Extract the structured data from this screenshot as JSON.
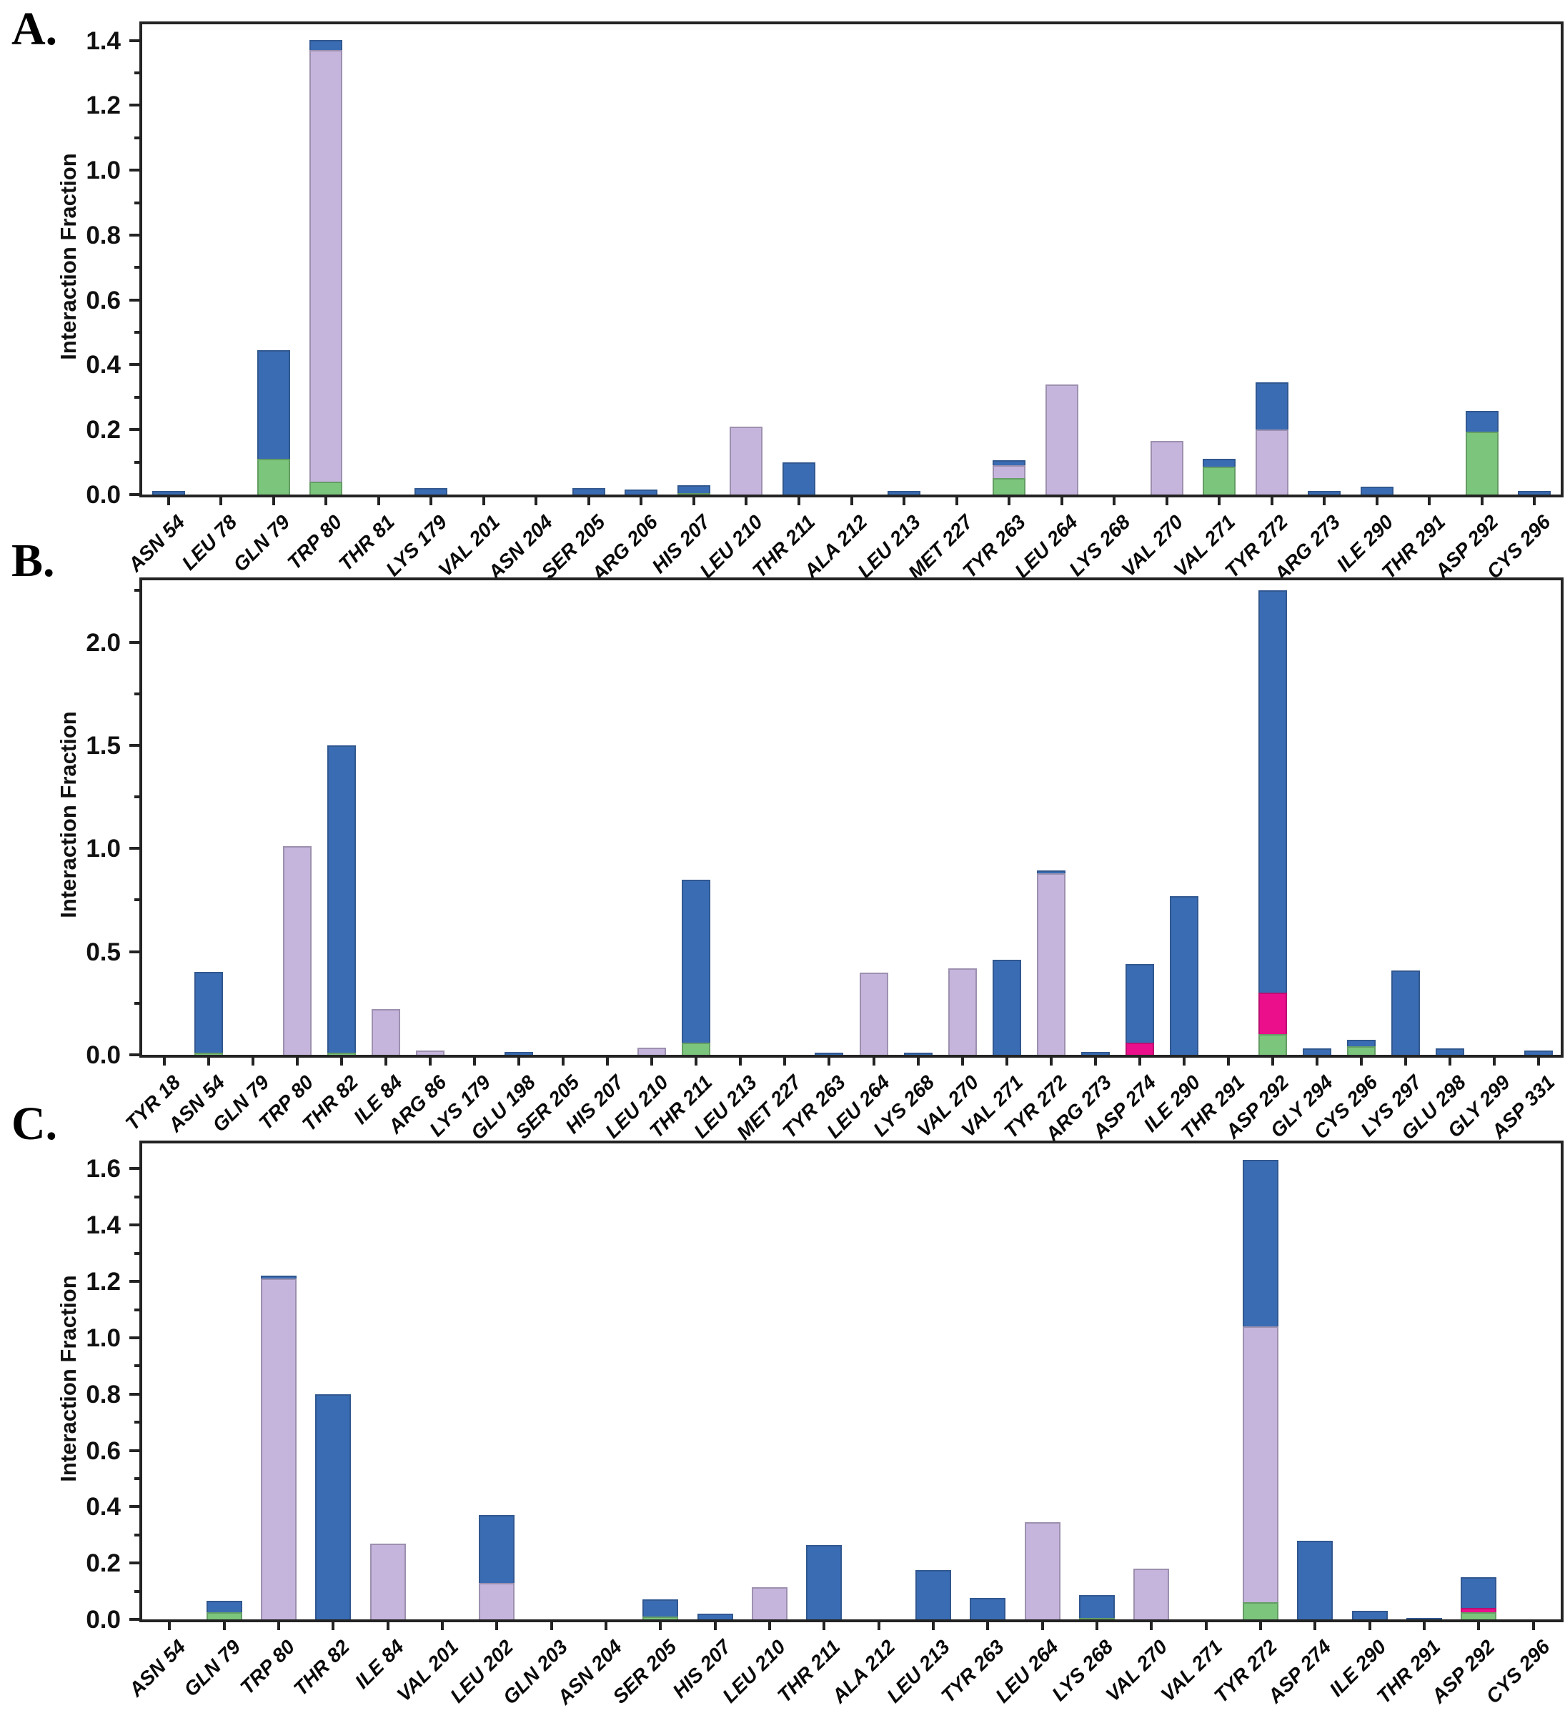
{
  "figure": {
    "background": "#ffffff"
  },
  "colors": {
    "blue_water_bridges": "#3a6cb4",
    "green_h_bonds": "#7cc57c",
    "lavender_hydrophobic": "#c5b4dc",
    "pink_ionic": "#eb0f8c",
    "axis": "#232323"
  },
  "chart_data": [
    {
      "type": "bar",
      "stacked": true,
      "panel_label": "A.",
      "ylabel": "Interaction Fraction",
      "xlabel": "",
      "grid": false,
      "legend": "none",
      "ylim": [
        0,
        1.45
      ],
      "ytick_labels": [
        "0.0",
        "0.2",
        "0.4",
        "0.6",
        "0.8",
        "1.0",
        "1.2",
        "1.4"
      ],
      "ytick_values": [
        0,
        0.2,
        0.4,
        0.6,
        0.8,
        1.0,
        1.2,
        1.4
      ],
      "yminor_values": [
        0.1,
        0.3,
        0.5,
        0.7,
        0.9,
        1.1,
        1.3
      ],
      "categories": [
        "ASN 54",
        "LEU 78",
        "GLN 79",
        "TRP 80",
        "THR 81",
        "LYS 179",
        "VAL 201",
        "ASN 204",
        "SER 205",
        "ARG 206",
        "HIS 207",
        "LEU 210",
        "THR 211",
        "ALA 212",
        "LEU 213",
        "MET 227",
        "TYR 263",
        "LEU 264",
        "LYS 268",
        "VAL 270",
        "VAL 271",
        "TYR 272",
        "ARG 273",
        "ILE 290",
        "THR 291",
        "ASP 292",
        "CYS 296"
      ],
      "series": [
        {
          "name": "green_h_bonds",
          "values": [
            0,
            0,
            0.11,
            0.04,
            0,
            0,
            0,
            0,
            0,
            0,
            0.005,
            0,
            0,
            0,
            0,
            0,
            0.05,
            0,
            0,
            0,
            0.085,
            0,
            0,
            0,
            0,
            0.195,
            0
          ]
        },
        {
          "name": "lavender_hydrophobic",
          "values": [
            0,
            0,
            0,
            1.33,
            0,
            0,
            0,
            0,
            0,
            0,
            0,
            0.21,
            0,
            0,
            0,
            0,
            0.04,
            0.34,
            0,
            0.165,
            0,
            0.2,
            0,
            0,
            0,
            0,
            0
          ]
        },
        {
          "name": "pink_ionic",
          "values": [
            0,
            0,
            0,
            0,
            0,
            0,
            0,
            0,
            0,
            0,
            0,
            0,
            0,
            0,
            0,
            0,
            0,
            0,
            0,
            0,
            0,
            0,
            0,
            0,
            0,
            0,
            0
          ]
        },
        {
          "name": "blue_water_bridges",
          "values": [
            0.01,
            0,
            0.335,
            0.03,
            0,
            0.02,
            0,
            0,
            0.02,
            0.015,
            0.025,
            0,
            0.1,
            0,
            0.01,
            0,
            0.015,
            0,
            0,
            0,
            0.025,
            0.145,
            0.01,
            0.025,
            0,
            0.065,
            0.01
          ]
        }
      ]
    },
    {
      "type": "bar",
      "stacked": true,
      "panel_label": "B.",
      "ylabel": "Interaction Fraction",
      "xlabel": "",
      "grid": false,
      "legend": "none",
      "ylim": [
        0,
        2.3
      ],
      "ytick_labels": [
        "0.0",
        "0.5",
        "1.0",
        "1.5",
        "2.0"
      ],
      "ytick_values": [
        0,
        0.5,
        1.0,
        1.5,
        2.0
      ],
      "yminor_values": [
        0.25,
        0.75,
        1.25,
        1.75,
        2.25
      ],
      "categories": [
        "TYR 18",
        "ASN 54",
        "GLN 79",
        "TRP 80",
        "THR 82",
        "ILE 84",
        "ARG 86",
        "LYS 179",
        "GLU 198",
        "SER 205",
        "HIS 207",
        "LEU 210",
        "THR 211",
        "LEU 213",
        "MET 227",
        "TYR 263",
        "LEU 264",
        "LYS 268",
        "VAL 270",
        "VAL 271",
        "TYR 272",
        "ARG 273",
        "ASP 274",
        "ILE 290",
        "THR 291",
        "ASP 292",
        "GLY 294",
        "CYS 296",
        "LYS 297",
        "GLU 298",
        "GLY 299",
        "ASP 331"
      ],
      "series": [
        {
          "name": "green_h_bonds",
          "values": [
            0,
            0.01,
            0,
            0,
            0.01,
            0,
            0,
            0,
            0,
            0,
            0,
            0,
            0.06,
            0,
            0,
            0,
            0,
            0,
            0,
            0,
            0,
            0,
            0,
            0,
            0,
            0.1,
            0,
            0.04,
            0,
            0,
            0,
            0
          ]
        },
        {
          "name": "lavender_hydrophobic",
          "values": [
            0,
            0,
            0,
            1.01,
            0,
            0.22,
            0.02,
            0,
            0,
            0,
            0,
            0.035,
            0,
            0,
            0,
            0,
            0.4,
            0,
            0.42,
            0,
            0.88,
            0,
            0,
            0,
            0,
            0,
            0,
            0,
            0,
            0,
            0,
            0
          ]
        },
        {
          "name": "pink_ionic",
          "values": [
            0,
            0,
            0,
            0,
            0,
            0,
            0,
            0,
            0,
            0,
            0,
            0,
            0,
            0,
            0,
            0,
            0,
            0,
            0,
            0,
            0,
            0,
            0.06,
            0,
            0,
            0.2,
            0,
            0,
            0,
            0,
            0,
            0
          ]
        },
        {
          "name": "blue_water_bridges",
          "values": [
            0,
            0.39,
            0,
            0,
            1.49,
            0,
            0,
            0,
            0.015,
            0,
            0,
            0,
            0.79,
            0,
            0,
            0.01,
            0,
            0.01,
            0,
            0.46,
            0.015,
            0.015,
            0.38,
            0.77,
            0,
            1.95,
            0.03,
            0.03,
            0.41,
            0.03,
            0,
            0.02
          ]
        }
      ]
    },
    {
      "type": "bar",
      "stacked": true,
      "panel_label": "C.",
      "ylabel": "Interaction Fraction",
      "xlabel": "",
      "grid": false,
      "legend": "none",
      "ylim": [
        0,
        1.69
      ],
      "ytick_labels": [
        "0.0",
        "0.2",
        "0.4",
        "0.6",
        "0.8",
        "1.0",
        "1.2",
        "1.4",
        "1.6"
      ],
      "ytick_values": [
        0,
        0.2,
        0.4,
        0.6,
        0.8,
        1.0,
        1.2,
        1.4,
        1.6
      ],
      "yminor_values": [
        0.1,
        0.3,
        0.5,
        0.7,
        0.9,
        1.1,
        1.3,
        1.5
      ],
      "categories": [
        "ASN 54",
        "GLN 79",
        "TRP 80",
        "THR 82",
        "ILE 84",
        "VAL 201",
        "LEU 202",
        "GLN 203",
        "ASN 204",
        "SER 205",
        "HIS 207",
        "LEU 210",
        "THR 211",
        "ALA 212",
        "LEU 213",
        "TYR 263",
        "LEU 264",
        "LYS 268",
        "VAL 270",
        "VAL 271",
        "TYR 272",
        "ASP 274",
        "ILE 290",
        "THR 291",
        "ASP 292",
        "CYS 296"
      ],
      "series": [
        {
          "name": "green_h_bonds",
          "values": [
            0,
            0.025,
            0,
            0,
            0,
            0,
            0,
            0,
            0,
            0.01,
            0,
            0,
            0,
            0,
            0,
            0,
            0,
            0.005,
            0,
            0,
            0.06,
            0,
            0,
            0,
            0.025,
            0
          ]
        },
        {
          "name": "lavender_hydrophobic",
          "values": [
            0,
            0,
            1.21,
            0,
            0.27,
            0,
            0.13,
            0,
            0,
            0,
            0,
            0.115,
            0,
            0,
            0,
            0,
            0.345,
            0,
            0.18,
            0,
            0.98,
            0,
            0,
            0,
            0,
            0
          ]
        },
        {
          "name": "pink_ionic",
          "values": [
            0,
            0,
            0,
            0,
            0,
            0,
            0,
            0,
            0,
            0,
            0,
            0,
            0,
            0,
            0,
            0,
            0,
            0,
            0,
            0,
            0,
            0,
            0,
            0,
            0.015,
            0
          ]
        },
        {
          "name": "blue_water_bridges",
          "values": [
            0,
            0.04,
            0.01,
            0.8,
            0,
            0,
            0.24,
            0,
            0,
            0.06,
            0.02,
            0,
            0.265,
            0,
            0.175,
            0.075,
            0,
            0.08,
            0,
            0,
            0.59,
            0.28,
            0.03,
            0.005,
            0.11,
            0
          ]
        }
      ]
    }
  ]
}
